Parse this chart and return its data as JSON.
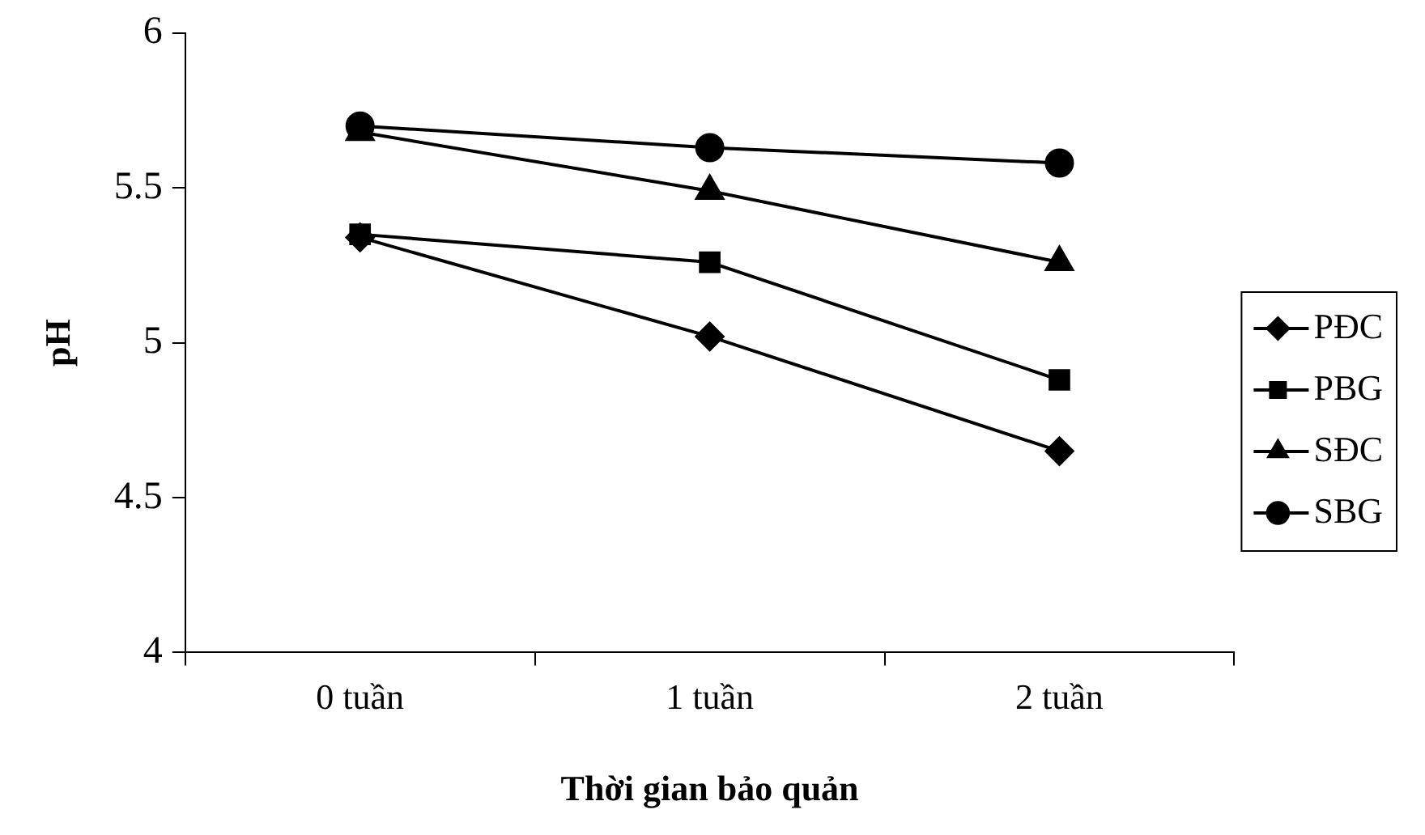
{
  "chart_data": {
    "type": "line",
    "xlabel": "Thời gian bảo quản",
    "ylabel": "pH",
    "categories": [
      "0 tuần",
      "1 tuần",
      "2 tuần"
    ],
    "series": [
      {
        "name": "PĐC",
        "color": "#000000",
        "marker": "diamond",
        "values": [
          5.34,
          5.02,
          4.65
        ]
      },
      {
        "name": "PBG",
        "color": "#000000",
        "marker": "square",
        "values": [
          5.35,
          5.26,
          4.88
        ]
      },
      {
        "name": "SĐC",
        "color": "#000000",
        "marker": "triangle",
        "values": [
          5.68,
          5.49,
          5.26
        ]
      },
      {
        "name": "SBG",
        "color": "#000000",
        "marker": "circle",
        "values": [
          5.7,
          5.63,
          5.58
        ]
      }
    ],
    "ylim": [
      4,
      6
    ],
    "yticks": [
      4,
      4.5,
      5,
      5.5,
      6
    ],
    "grid": false,
    "legend": "right",
    "line_style": "solid"
  }
}
